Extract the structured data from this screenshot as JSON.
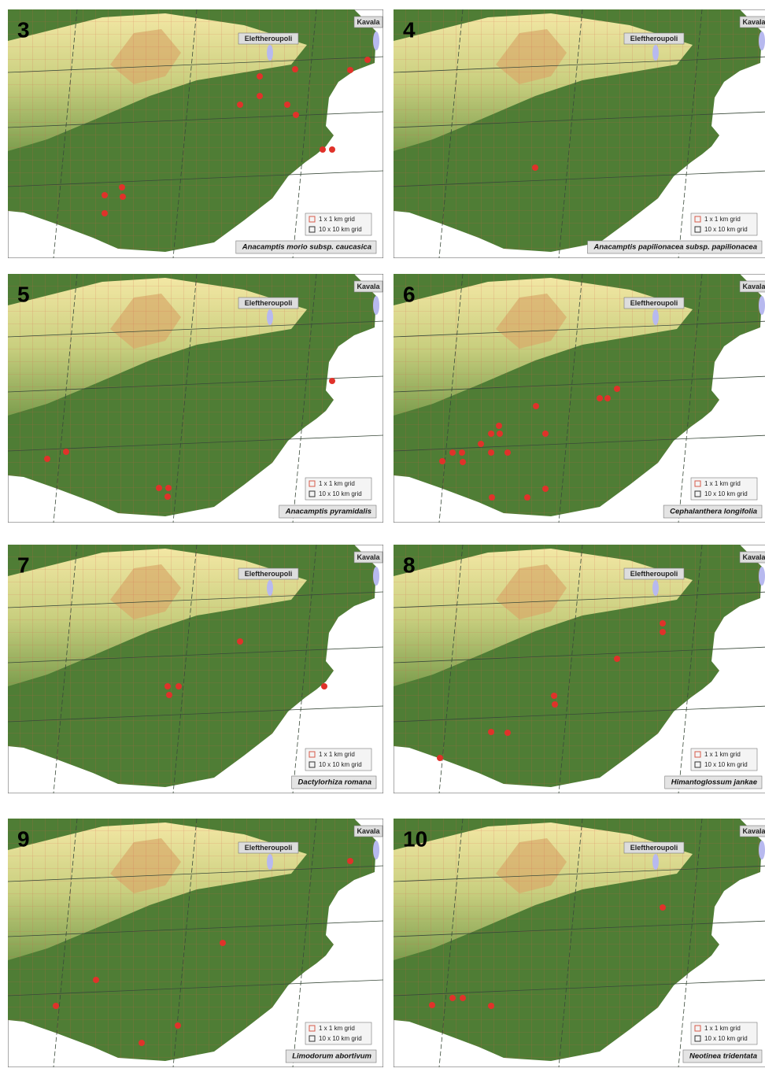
{
  "places": {
    "town": "Eleftheroupoli",
    "city": "Kavala"
  },
  "legend": {
    "fine": "1 x 1 km grid",
    "coarse": "10 x 10 km grid"
  },
  "panels": [
    {
      "number": "3",
      "species": "Anacamptis morio subsp. caucasica"
    },
    {
      "number": "4",
      "species": "Anacamptis papilionacea subsp. papilionacea"
    },
    {
      "number": "5",
      "species": "Anacamptis pyramidalis"
    },
    {
      "number": "6",
      "species": "Cephalanthera longifolia"
    },
    {
      "number": "7",
      "species": "Dactylorhiza romana"
    },
    {
      "number": "8",
      "species": "Himantoglossum jankae"
    },
    {
      "number": "9",
      "species": "Limodorum abortivum"
    },
    {
      "number": "10",
      "species": "Neotinea tridentata"
    }
  ]
}
